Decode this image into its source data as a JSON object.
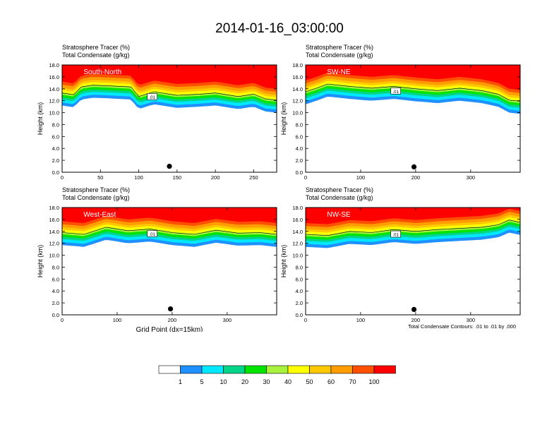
{
  "title": "2014-01-16_03:00:00",
  "top_label_1": "Stratosphere Tracer   (%)",
  "top_label_2": "Total Condensate   (g/kg)",
  "y_axis_label": "Height (km)",
  "x_axis_label": "Grid Point (dx=15km)",
  "contour_note": "Total Condensate Contours: .01 to .01 by .000",
  "contour_label": ".01",
  "colors": [
    "#ffffff",
    "#1e90ff",
    "#00e8ff",
    "#00d58a",
    "#00e400",
    "#a6f23c",
    "#ffff00",
    "#ffc800",
    "#ff9c00",
    "#ff5000",
    "#ff0000"
  ],
  "colorbar_labels": [
    "1",
    "5",
    "10",
    "20",
    "30",
    "40",
    "50",
    "60",
    "70",
    "100"
  ],
  "chart_data": [
    {
      "type": "heatmap",
      "panel_label": "South-North",
      "x_max": 280,
      "ylim": [
        0,
        18
      ],
      "x_ticks": [
        "0",
        "50",
        "100",
        "150",
        "200",
        "250"
      ],
      "y_ticks": [
        "0.0",
        "2.0",
        "4.0",
        "6.0",
        "8.0",
        "10.0",
        "12.0",
        "14.0",
        "16.0",
        "18.0"
      ],
      "tropopause_km": [
        [
          0,
          13.8
        ],
        [
          15,
          13.5
        ],
        [
          25,
          14.8
        ],
        [
          40,
          15.1
        ],
        [
          60,
          15.0
        ],
        [
          90,
          14.8
        ],
        [
          100,
          13.2
        ],
        [
          120,
          14.0
        ],
        [
          150,
          13.4
        ],
        [
          180,
          13.6
        ],
        [
          200,
          13.8
        ],
        [
          230,
          13.2
        ],
        [
          250,
          13.6
        ],
        [
          265,
          12.8
        ],
        [
          280,
          12.6
        ]
      ],
      "marker": {
        "x": 140,
        "y": 1.0
      }
    },
    {
      "type": "heatmap",
      "panel_label": "SW-NE",
      "x_max": 390,
      "ylim": [
        0,
        18
      ],
      "x_ticks": [
        "0",
        "100",
        "200",
        "300"
      ],
      "y_ticks": [
        "0.0",
        "2.0",
        "4.0",
        "6.0",
        "8.0",
        "10.0",
        "12.0",
        "14.0",
        "16.0",
        "18.0"
      ],
      "tropopause_km": [
        [
          0,
          14.0
        ],
        [
          20,
          14.6
        ],
        [
          40,
          15.3
        ],
        [
          80,
          14.9
        ],
        [
          120,
          14.6
        ],
        [
          160,
          14.9
        ],
        [
          200,
          14.5
        ],
        [
          240,
          14.2
        ],
        [
          280,
          14.6
        ],
        [
          320,
          14.2
        ],
        [
          350,
          13.6
        ],
        [
          370,
          12.6
        ],
        [
          390,
          12.4
        ]
      ],
      "marker": {
        "x": 197,
        "y": 0.9
      }
    },
    {
      "type": "heatmap",
      "panel_label": "West-East",
      "x_max": 390,
      "ylim": [
        0,
        18
      ],
      "x_ticks": [
        "0",
        "100",
        "200",
        "300"
      ],
      "y_ticks": [
        "0.0",
        "2.0",
        "4.0",
        "6.0",
        "8.0",
        "10.0",
        "12.0",
        "14.0",
        "16.0",
        "18.0"
      ],
      "tropopause_km": [
        [
          0,
          14.3
        ],
        [
          40,
          14.0
        ],
        [
          80,
          15.2
        ],
        [
          120,
          14.6
        ],
        [
          160,
          14.9
        ],
        [
          200,
          14.3
        ],
        [
          240,
          14.0
        ],
        [
          280,
          14.7
        ],
        [
          320,
          14.2
        ],
        [
          360,
          14.3
        ],
        [
          390,
          14.0
        ]
      ],
      "marker": {
        "x": 197,
        "y": 1.0
      }
    },
    {
      "type": "heatmap",
      "panel_label": "NW-SE",
      "x_max": 390,
      "ylim": [
        0,
        18
      ],
      "x_ticks": [
        "0",
        "100",
        "200",
        "300"
      ],
      "y_ticks": [
        "0.0",
        "2.0",
        "4.0",
        "6.0",
        "8.0",
        "10.0",
        "12.0",
        "14.0",
        "16.0",
        "18.0"
      ],
      "tropopause_km": [
        [
          0,
          14.0
        ],
        [
          40,
          13.8
        ],
        [
          80,
          14.5
        ],
        [
          120,
          14.3
        ],
        [
          160,
          14.8
        ],
        [
          200,
          14.5
        ],
        [
          240,
          14.8
        ],
        [
          280,
          15.0
        ],
        [
          320,
          15.2
        ],
        [
          350,
          15.6
        ],
        [
          370,
          16.4
        ],
        [
          390,
          16.0
        ]
      ],
      "marker": {
        "x": 197,
        "y": 0.9
      }
    }
  ]
}
